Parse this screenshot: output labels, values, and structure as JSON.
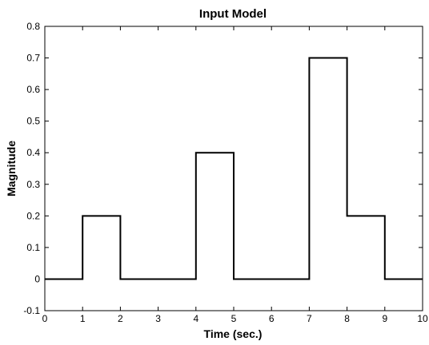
{
  "chart_data": {
    "type": "line",
    "title": "Input Model",
    "xlabel": "Time (sec.)",
    "ylabel": "Magnitude",
    "xlim": [
      0,
      10
    ],
    "ylim": [
      -0.1,
      0.8
    ],
    "xticks": [
      0,
      1,
      2,
      3,
      4,
      5,
      6,
      7,
      8,
      9,
      10
    ],
    "xtick_labels": [
      "0",
      "1",
      "2",
      "3",
      "4",
      "5",
      "6",
      "7",
      "8",
      "9",
      "10"
    ],
    "yticks": [
      -0.1,
      0,
      0.1,
      0.2,
      0.3,
      0.4,
      0.5,
      0.6,
      0.7,
      0.8
    ],
    "ytick_labels": [
      "-0.1",
      "0",
      "0.1",
      "0.2",
      "0.3",
      "0.4",
      "0.5",
      "0.6",
      "0.7",
      "0.8"
    ],
    "grid": false,
    "line_color": "#000000",
    "series": [
      {
        "x": [
          0,
          1,
          1,
          2,
          2,
          4,
          4,
          5,
          5,
          7,
          7,
          8,
          8,
          9,
          9,
          10
        ],
        "y": [
          0,
          0,
          0.2,
          0.2,
          0,
          0,
          0.4,
          0.4,
          0,
          0,
          0.7,
          0.7,
          0.2,
          0.2,
          0,
          0
        ]
      }
    ]
  }
}
